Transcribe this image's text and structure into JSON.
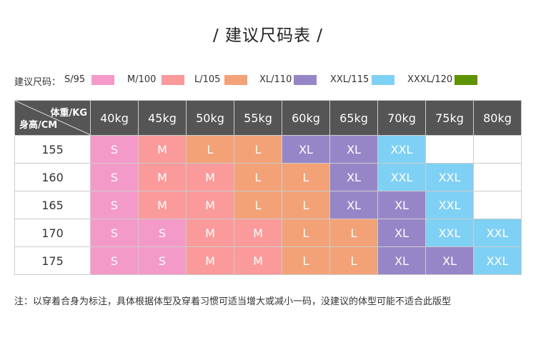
{
  "title": "/ 建议尺码表 /",
  "legend": {
    "label": "建议尺码：",
    "items": [
      {
        "label": "S/95",
        "color": "#f49ac8"
      },
      {
        "label": "M/100",
        "color": "#fa9a9a"
      },
      {
        "label": "L/105",
        "color": "#f3a278"
      },
      {
        "label": "XL/110",
        "color": "#9786c7"
      },
      {
        "label": "XXL/115",
        "color": "#7fd0f5"
      },
      {
        "label": "XXXL/120",
        "color": "#5e9300"
      }
    ]
  },
  "table": {
    "corner_weight": "体重/KG",
    "corner_height": "身高/CM",
    "weights": [
      "40kg",
      "45kg",
      "50kg",
      "55kg",
      "60kg",
      "65kg",
      "70kg",
      "75kg",
      "80kg"
    ],
    "rows": [
      {
        "height": "155",
        "sizes": [
          "S",
          "M",
          "L",
          "L",
          "XL",
          "XL",
          "XXL",
          "",
          ""
        ]
      },
      {
        "height": "160",
        "sizes": [
          "S",
          "M",
          "M",
          "L",
          "L",
          "XL",
          "XXL",
          "XXL",
          ""
        ]
      },
      {
        "height": "165",
        "sizes": [
          "S",
          "M",
          "M",
          "L",
          "L",
          "XL",
          "XL",
          "XXL",
          ""
        ]
      },
      {
        "height": "170",
        "sizes": [
          "S",
          "S",
          "M",
          "M",
          "L",
          "L",
          "XL",
          "XXL",
          "XXL"
        ]
      },
      {
        "height": "175",
        "sizes": [
          "S",
          "S",
          "M",
          "M",
          "L",
          "L",
          "XL",
          "XL",
          "XXL"
        ]
      }
    ],
    "size_colors": {
      "S": "#f49ac8",
      "M": "#fa9a9a",
      "L": "#f3a278",
      "XL": "#9786c7",
      "XXL": "#7fd0f5",
      "XXXL": "#5e9300"
    }
  },
  "note": "注：以穿着合身为标注，具体根据体型及穿着习惯可适当增大或减小一码，没建议的体型可能不适合此版型"
}
